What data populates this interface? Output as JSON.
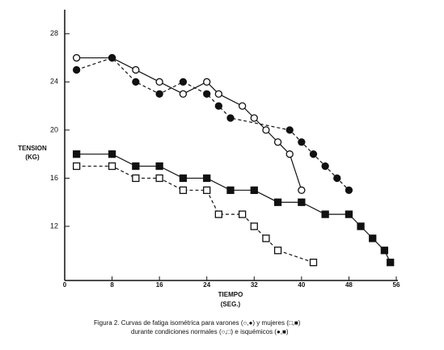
{
  "chart_data": {
    "type": "line",
    "y_label_lines": [
      "TENSION",
      "(KG)"
    ],
    "x_label_lines": [
      "TIEMPO",
      "(SEG.)"
    ],
    "caption_lines": [
      "Figura 2.  Curvas de fatiga isométrica para varones (○,●) y mujeres (□,■)",
      "durante condiciones normales (○,□) e isquémicos (●,■)"
    ],
    "xlim": [
      0,
      56
    ],
    "xticks": [
      0,
      8,
      16,
      24,
      32,
      40,
      48,
      56
    ],
    "ylim": [
      7.5,
      30
    ],
    "yticks": [
      28,
      24,
      20,
      16,
      12
    ],
    "series": [
      {
        "marker": "circle",
        "filled": false,
        "dashed": false,
        "color": "#111111",
        "x": [
          2,
          8,
          12,
          16,
          20,
          24,
          26,
          30,
          32,
          34,
          36,
          38,
          40
        ],
        "values": [
          26,
          26,
          25,
          24,
          23,
          24,
          23,
          22,
          21,
          20,
          19,
          18,
          15
        ]
      },
      {
        "marker": "circle",
        "filled": true,
        "dashed": true,
        "color": "#111111",
        "x": [
          2,
          8,
          12,
          16,
          20,
          24,
          26,
          28,
          38,
          40,
          42,
          44,
          46,
          48
        ],
        "values": [
          25,
          26,
          24,
          23,
          24,
          23,
          22,
          21,
          20,
          19,
          18,
          17,
          16,
          15
        ]
      },
      {
        "marker": "square",
        "filled": true,
        "dashed": false,
        "color": "#111111",
        "x": [
          2,
          8,
          12,
          16,
          20,
          24,
          28,
          32,
          36,
          40,
          44,
          48,
          50,
          52,
          54,
          55
        ],
        "values": [
          18,
          18,
          17,
          17,
          16,
          16,
          15,
          15,
          14,
          14,
          13,
          13,
          12,
          11,
          10,
          9
        ]
      },
      {
        "marker": "square",
        "filled": false,
        "dashed": true,
        "color": "#111111",
        "x": [
          2,
          8,
          12,
          16,
          20,
          24,
          26,
          30,
          32,
          34,
          36,
          42
        ],
        "values": [
          17,
          17,
          16,
          16,
          15,
          15,
          13,
          13,
          12,
          11,
          10,
          9
        ]
      }
    ]
  }
}
